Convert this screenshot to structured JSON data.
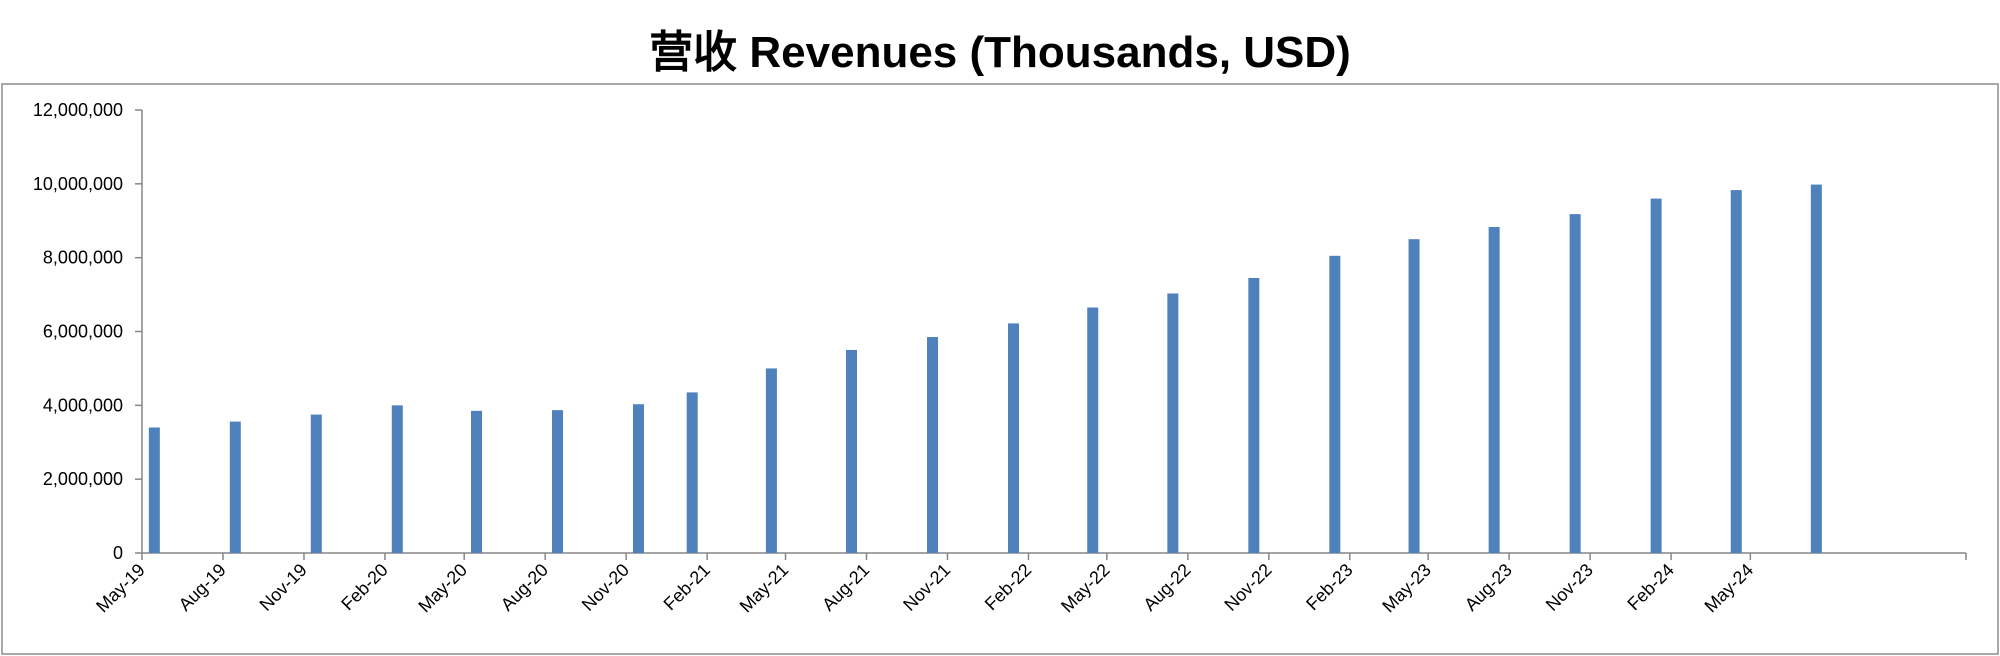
{
  "chart_data": {
    "type": "bar",
    "title": "营收 Revenues (Thousands, USD)",
    "xlabel": "",
    "ylabel": "",
    "ylim": [
      0,
      12000000
    ],
    "yticks": [
      0,
      2000000,
      4000000,
      6000000,
      8000000,
      10000000,
      12000000
    ],
    "ytick_labels": [
      "0",
      "2,000,000",
      "4,000,000",
      "6,000,000",
      "8,000,000",
      "10,000,000",
      "12,000,000"
    ],
    "xlim": [
      "2019-05-01",
      "2025-01-01"
    ],
    "xticks": [
      "2019-05-01",
      "2019-08-01",
      "2019-11-01",
      "2020-02-01",
      "2020-05-01",
      "2020-08-01",
      "2020-11-01",
      "2021-02-01",
      "2021-05-01",
      "2021-08-01",
      "2021-11-01",
      "2022-02-01",
      "2022-05-01",
      "2022-08-01",
      "2022-11-01",
      "2023-02-01",
      "2023-05-01",
      "2023-08-01",
      "2023-11-01",
      "2024-02-01",
      "2024-05-01"
    ],
    "xtick_labels": [
      "May-19",
      "Aug-19",
      "Nov-19",
      "Feb-20",
      "May-20",
      "Aug-20",
      "Nov-20",
      "Feb-21",
      "May-21",
      "Aug-21",
      "Nov-21",
      "Feb-22",
      "May-22",
      "Aug-22",
      "Nov-22",
      "Feb-23",
      "May-23",
      "Aug-23",
      "Nov-23",
      "Feb-24",
      "May-24"
    ],
    "x": [
      "2019-05-15",
      "2019-08-15",
      "2019-11-15",
      "2020-02-15",
      "2020-05-15",
      "2020-08-15",
      "2020-11-15",
      "2021-01-15",
      "2021-04-15",
      "2021-07-15",
      "2021-10-15",
      "2022-01-15",
      "2022-04-15",
      "2022-07-15",
      "2022-10-15",
      "2023-01-15",
      "2023-04-15",
      "2023-07-15",
      "2023-10-15",
      "2024-01-15",
      "2024-04-15",
      "2024-07-15"
    ],
    "values": [
      3400000,
      3560000,
      3750000,
      4000000,
      3850000,
      3870000,
      4030000,
      4350000,
      5000000,
      5500000,
      5850000,
      6220000,
      6650000,
      7030000,
      7450000,
      8050000,
      8500000,
      8830000,
      9180000,
      9600000,
      9830000,
      9980000
    ],
    "bar_color": "#4F81BD",
    "grid": false,
    "legend": false
  }
}
